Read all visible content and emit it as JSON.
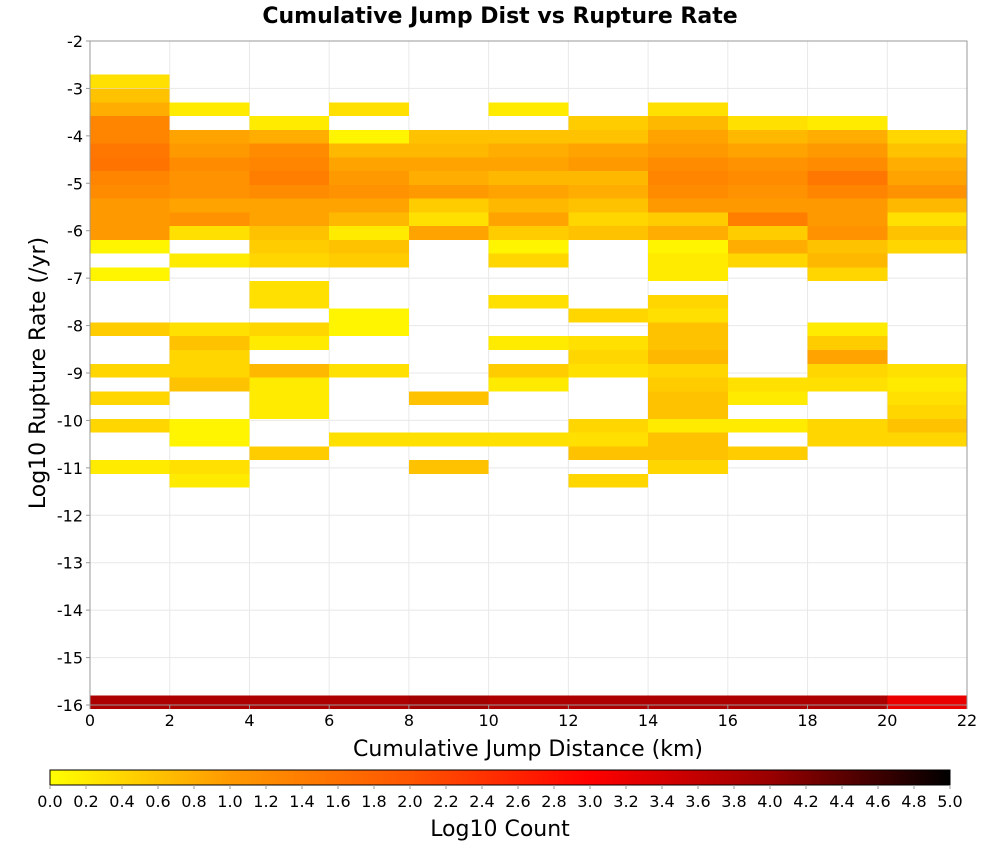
{
  "chart_data": {
    "type": "heatmap",
    "title": "Cumulative Jump Dist vs Rupture Rate",
    "xlabel": "Cumulative Jump Distance (km)",
    "ylabel": "Log10 Rupture Rate (/yr)",
    "xlim": [
      0,
      22
    ],
    "ylim": [
      -16,
      -2
    ],
    "x_ticks": [
      "0",
      "2",
      "4",
      "6",
      "8",
      "10",
      "12",
      "14",
      "16",
      "18",
      "20",
      "22"
    ],
    "y_ticks": [
      "-2",
      "-3",
      "-4",
      "-5",
      "-6",
      "-7",
      "-8",
      "-9",
      "-10",
      "-11",
      "-12",
      "-13",
      "-14",
      "-15",
      "-16"
    ],
    "x_bin_width": 2,
    "y_bin_height": 0.29,
    "grid": true,
    "colorbar": {
      "label": "Log10 Count",
      "range": [
        0,
        5
      ],
      "ticks": [
        "0.0",
        "0.2",
        "0.4",
        "0.6",
        "0.8",
        "1.0",
        "1.2",
        "1.4",
        "1.6",
        "1.8",
        "2.0",
        "2.2",
        "2.4",
        "2.6",
        "2.8",
        "3.0",
        "3.2",
        "3.4",
        "3.6",
        "3.8",
        "4.0",
        "4.2",
        "4.4",
        "4.6",
        "4.8",
        "5.0"
      ],
      "colors": [
        "#ffff00",
        "#ff9900",
        "#ff5500",
        "#ff0000",
        "#990000",
        "#000000"
      ]
    },
    "columns": [
      {
        "x": 1,
        "cells": [
          [
            -2.85,
            0.3
          ],
          [
            -3.15,
            0.6
          ],
          [
            -3.44,
            0.8
          ],
          [
            -3.73,
            1.3
          ],
          [
            -4.02,
            1.3
          ],
          [
            -4.31,
            1.5
          ],
          [
            -4.6,
            1.55
          ],
          [
            -4.89,
            1.3
          ],
          [
            -5.18,
            1.2
          ],
          [
            -5.47,
            1.0
          ],
          [
            -5.76,
            1.0
          ],
          [
            -6.05,
            1.0
          ],
          [
            -6.34,
            0.1
          ],
          [
            -6.92,
            0.1
          ],
          [
            -8.08,
            0.5
          ],
          [
            -8.95,
            0.4
          ],
          [
            -9.53,
            0.4
          ],
          [
            -10.11,
            0.4
          ],
          [
            -10.98,
            0.2
          ]
        ]
      },
      {
        "x": 3,
        "cells": [
          [
            -3.44,
            0.2
          ],
          [
            -4.02,
            0.9
          ],
          [
            -4.31,
            1.0
          ],
          [
            -4.6,
            1.2
          ],
          [
            -4.89,
            1.1
          ],
          [
            -5.18,
            1.1
          ],
          [
            -5.47,
            0.9
          ],
          [
            -5.76,
            1.1
          ],
          [
            -6.05,
            0.3
          ],
          [
            -6.63,
            0.2
          ],
          [
            -8.08,
            0.3
          ],
          [
            -8.37,
            0.6
          ],
          [
            -8.66,
            0.4
          ],
          [
            -8.95,
            0.4
          ],
          [
            -9.24,
            0.6
          ],
          [
            -10.11,
            0.1
          ],
          [
            -10.4,
            0.1
          ],
          [
            -10.98,
            0.3
          ],
          [
            -11.27,
            0.2
          ]
        ]
      },
      {
        "x": 5,
        "cells": [
          [
            -3.73,
            0.2
          ],
          [
            -4.02,
            0.8
          ],
          [
            -4.31,
            1.2
          ],
          [
            -4.6,
            1.3
          ],
          [
            -4.89,
            1.4
          ],
          [
            -5.18,
            1.2
          ],
          [
            -5.47,
            0.9
          ],
          [
            -5.76,
            0.9
          ],
          [
            -6.05,
            0.6
          ],
          [
            -6.34,
            0.5
          ],
          [
            -6.63,
            0.4
          ],
          [
            -7.21,
            0.3
          ],
          [
            -7.5,
            0.3
          ],
          [
            -8.08,
            0.4
          ],
          [
            -8.37,
            0.2
          ],
          [
            -8.95,
            0.7
          ],
          [
            -9.24,
            0.2
          ],
          [
            -9.53,
            0.2
          ],
          [
            -9.82,
            0.2
          ],
          [
            -10.69,
            0.5
          ]
        ]
      },
      {
        "x": 7,
        "cells": [
          [
            -3.44,
            0.3
          ],
          [
            -4.02,
            0.1
          ],
          [
            -4.31,
            0.7
          ],
          [
            -4.6,
            0.9
          ],
          [
            -4.89,
            1.0
          ],
          [
            -5.18,
            1.1
          ],
          [
            -5.47,
            0.9
          ],
          [
            -5.76,
            0.7
          ],
          [
            -6.05,
            0.2
          ],
          [
            -6.34,
            0.6
          ],
          [
            -6.63,
            0.5
          ],
          [
            -7.79,
            0.1
          ],
          [
            -8.08,
            0.1
          ],
          [
            -8.95,
            0.3
          ],
          [
            -10.4,
            0.3
          ]
        ]
      },
      {
        "x": 9,
        "cells": [
          [
            -4.02,
            0.6
          ],
          [
            -4.31,
            0.7
          ],
          [
            -4.6,
            0.9
          ],
          [
            -4.89,
            0.8
          ],
          [
            -5.18,
            1.0
          ],
          [
            -5.47,
            0.5
          ],
          [
            -5.76,
            0.3
          ],
          [
            -6.05,
            0.9
          ],
          [
            -9.53,
            0.6
          ],
          [
            -10.4,
            0.3
          ],
          [
            -10.98,
            0.6
          ]
        ]
      },
      {
        "x": 11,
        "cells": [
          [
            -3.44,
            0.2
          ],
          [
            -4.02,
            0.6
          ],
          [
            -4.31,
            0.8
          ],
          [
            -4.6,
            0.9
          ],
          [
            -4.89,
            0.7
          ],
          [
            -5.18,
            0.9
          ],
          [
            -5.47,
            0.7
          ],
          [
            -5.76,
            0.9
          ],
          [
            -6.05,
            0.5
          ],
          [
            -6.34,
            0.1
          ],
          [
            -6.63,
            0.4
          ],
          [
            -7.5,
            0.3
          ],
          [
            -8.37,
            0.2
          ],
          [
            -8.95,
            0.5
          ],
          [
            -9.24,
            0.2
          ],
          [
            -10.4,
            0.3
          ]
        ]
      },
      {
        "x": 13,
        "cells": [
          [
            -3.73,
            0.5
          ],
          [
            -4.02,
            0.6
          ],
          [
            -4.31,
            0.9
          ],
          [
            -4.6,
            1.0
          ],
          [
            -4.89,
            0.7
          ],
          [
            -5.18,
            0.8
          ],
          [
            -5.47,
            0.6
          ],
          [
            -5.76,
            0.4
          ],
          [
            -6.05,
            0.6
          ],
          [
            -7.79,
            0.4
          ],
          [
            -8.37,
            0.3
          ],
          [
            -8.66,
            0.4
          ],
          [
            -8.95,
            0.3
          ],
          [
            -10.11,
            0.4
          ],
          [
            -10.4,
            0.3
          ],
          [
            -10.69,
            0.6
          ],
          [
            -11.27,
            0.4
          ]
        ]
      },
      {
        "x": 15,
        "cells": [
          [
            -3.44,
            0.3
          ],
          [
            -3.73,
            0.7
          ],
          [
            -4.02,
            0.9
          ],
          [
            -4.31,
            1.0
          ],
          [
            -4.6,
            1.2
          ],
          [
            -4.89,
            1.3
          ],
          [
            -5.18,
            1.2
          ],
          [
            -5.47,
            1.0
          ],
          [
            -5.76,
            0.5
          ],
          [
            -6.05,
            0.8
          ],
          [
            -6.34,
            0.1
          ],
          [
            -6.63,
            0.2
          ],
          [
            -6.92,
            0.2
          ],
          [
            -7.5,
            0.4
          ],
          [
            -7.79,
            0.3
          ],
          [
            -8.08,
            0.6
          ],
          [
            -8.37,
            0.6
          ],
          [
            -8.66,
            0.7
          ],
          [
            -8.95,
            0.4
          ],
          [
            -9.24,
            0.5
          ],
          [
            -9.53,
            0.6
          ],
          [
            -9.82,
            0.6
          ],
          [
            -10.11,
            0.2
          ],
          [
            -10.4,
            0.6
          ],
          [
            -10.69,
            0.6
          ],
          [
            -10.98,
            0.4
          ]
        ]
      },
      {
        "x": 17,
        "cells": [
          [
            -3.73,
            0.3
          ],
          [
            -4.02,
            0.7
          ],
          [
            -4.31,
            0.9
          ],
          [
            -4.6,
            1.1
          ],
          [
            -4.89,
            1.2
          ],
          [
            -5.18,
            1.1
          ],
          [
            -5.47,
            1.0
          ],
          [
            -5.76,
            1.4
          ],
          [
            -6.05,
            0.5
          ],
          [
            -6.34,
            0.8
          ],
          [
            -6.63,
            0.4
          ],
          [
            -9.24,
            0.3
          ],
          [
            -9.53,
            0.2
          ],
          [
            -10.11,
            0.2
          ],
          [
            -10.69,
            0.5
          ]
        ]
      },
      {
        "x": 19,
        "cells": [
          [
            -3.73,
            0.2
          ],
          [
            -4.02,
            0.8
          ],
          [
            -4.31,
            1.0
          ],
          [
            -4.6,
            1.2
          ],
          [
            -4.89,
            1.5
          ],
          [
            -5.18,
            1.3
          ],
          [
            -5.47,
            1.0
          ],
          [
            -5.76,
            1.0
          ],
          [
            -6.05,
            1.1
          ],
          [
            -6.34,
            0.6
          ],
          [
            -6.63,
            0.7
          ],
          [
            -6.92,
            0.4
          ],
          [
            -8.08,
            0.2
          ],
          [
            -8.37,
            0.5
          ],
          [
            -8.66,
            0.9
          ],
          [
            -8.95,
            0.4
          ],
          [
            -9.24,
            0.3
          ],
          [
            -10.11,
            0.4
          ],
          [
            -10.4,
            0.4
          ]
        ]
      },
      {
        "x": 21,
        "cells": [
          [
            -4.02,
            0.4
          ],
          [
            -4.31,
            0.6
          ],
          [
            -4.6,
            0.8
          ],
          [
            -4.89,
            0.9
          ],
          [
            -5.18,
            1.1
          ],
          [
            -5.47,
            0.7
          ],
          [
            -5.76,
            0.3
          ],
          [
            -6.05,
            0.6
          ],
          [
            -6.34,
            0.4
          ],
          [
            -8.95,
            0.3
          ],
          [
            -9.24,
            0.2
          ],
          [
            -9.53,
            0.3
          ],
          [
            -9.82,
            0.4
          ],
          [
            -10.11,
            0.6
          ],
          [
            -10.4,
            0.4
          ]
        ]
      }
    ],
    "bottom_row": {
      "y": -15.94,
      "values": [
        3.8,
        3.8,
        3.8,
        3.8,
        3.9,
        3.8,
        3.8,
        3.8,
        3.8,
        3.8,
        3.2
      ]
    }
  }
}
